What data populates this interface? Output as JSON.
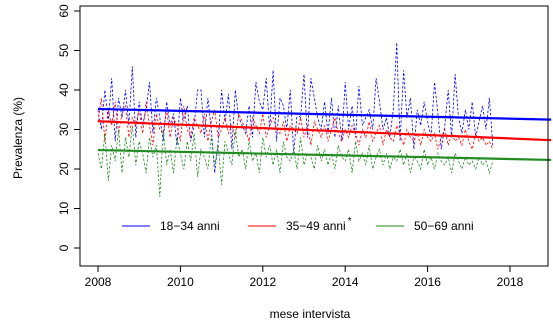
{
  "chart_data": {
    "type": "line",
    "xlabel": "mese intervista",
    "ylabel": "Prevalenza (%)",
    "xlim": [
      2008,
      2019
    ],
    "ylim": [
      0,
      60
    ],
    "x_ticks": [
      "2008",
      "2010",
      "2012",
      "2014",
      "2016",
      "2018"
    ],
    "y_ticks": [
      "0",
      "10",
      "20",
      "30",
      "40",
      "50",
      "60"
    ],
    "legend_position": "bottom-inside",
    "grid": false,
    "series": [
      {
        "name": "18−34 anni",
        "color": "#0000ff",
        "monthly_start": 2008.0,
        "monthly_values": [
          35,
          30,
          40,
          32,
          43,
          27,
          38,
          33,
          40,
          31,
          46,
          28,
          37,
          31,
          35,
          42,
          29,
          38,
          33,
          27,
          37,
          31,
          34,
          26,
          38,
          32,
          36,
          27,
          31,
          40,
          40,
          28,
          38,
          30,
          19,
          27,
          40,
          32,
          39,
          25,
          40,
          33,
          31,
          29,
          36,
          28,
          42,
          37,
          35,
          43,
          30,
          45,
          27,
          38,
          36,
          30,
          40,
          24,
          34,
          33,
          44,
          28,
          43,
          38,
          33,
          30,
          37,
          29,
          38,
          28,
          36,
          27,
          42,
          30,
          36,
          28,
          41,
          31,
          33,
          35,
          30,
          43,
          37,
          30,
          33,
          28,
          35,
          52,
          27,
          45,
          33,
          38,
          25,
          35,
          31,
          37,
          32,
          28,
          42,
          34,
          25,
          31,
          40,
          28,
          44,
          33,
          29,
          35,
          30,
          37,
          28,
          32,
          36,
          30,
          38,
          26
        ],
        "trend": [
          35.2,
          32.5
        ]
      },
      {
        "name": "35−49 anni",
        "color": "#ff0000",
        "marker": "*",
        "monthly_start": 2008.0,
        "monthly_values": [
          32,
          38,
          27,
          35,
          31,
          37,
          29,
          34,
          36,
          28,
          33,
          31,
          35,
          29,
          37,
          31,
          26,
          34,
          30,
          29,
          35,
          28,
          33,
          31,
          27,
          36,
          30,
          28,
          33,
          31,
          29,
          34,
          27,
          32,
          35,
          28,
          30,
          33,
          29,
          31,
          28,
          34,
          32,
          30,
          27,
          33,
          31,
          29,
          34,
          28,
          31,
          33,
          30,
          29,
          32,
          27,
          31,
          30,
          29,
          33,
          28,
          31,
          26,
          32,
          30,
          28,
          31,
          27,
          30,
          33,
          29,
          27,
          30,
          28,
          31,
          29,
          26,
          30,
          28,
          32,
          27,
          29,
          31,
          26,
          30,
          28,
          27,
          31,
          29,
          26,
          30,
          28,
          27,
          29,
          26,
          30,
          28,
          27,
          29,
          25,
          28,
          30,
          26,
          29,
          27,
          28,
          26,
          30,
          27,
          25,
          29,
          27,
          28,
          26,
          27,
          25
        ],
        "trend": [
          32.1,
          27.3
        ]
      },
      {
        "name": "50−69 anni",
        "color": "#228b22",
        "monthly_start": 2008.0,
        "monthly_values": [
          24,
          20,
          29,
          17,
          26,
          22,
          30,
          19,
          28,
          23,
          31,
          21,
          27,
          24,
          19,
          28,
          23,
          26,
          13,
          30,
          21,
          25,
          19,
          28,
          24,
          20,
          27,
          22,
          29,
          18,
          25,
          23,
          20,
          28,
          21,
          26,
          16,
          27,
          24,
          21,
          30,
          23,
          25,
          20,
          27,
          22,
          24,
          19,
          28,
          23,
          26,
          21,
          25,
          19,
          27,
          23,
          22,
          25,
          20,
          28,
          21,
          24,
          23,
          20,
          26,
          22,
          25,
          21,
          24,
          20,
          26,
          23,
          22,
          25,
          19,
          27,
          22,
          24,
          21,
          26,
          20,
          23,
          25,
          21,
          24,
          20,
          23,
          22,
          25,
          21,
          24,
          19,
          23,
          22,
          20,
          25,
          21,
          23,
          20,
          24,
          22,
          21,
          23,
          19,
          24,
          22,
          20,
          23,
          21,
          22,
          20,
          23,
          21,
          22,
          19,
          22
        ],
        "trend": [
          24.8,
          22.3
        ]
      }
    ]
  }
}
